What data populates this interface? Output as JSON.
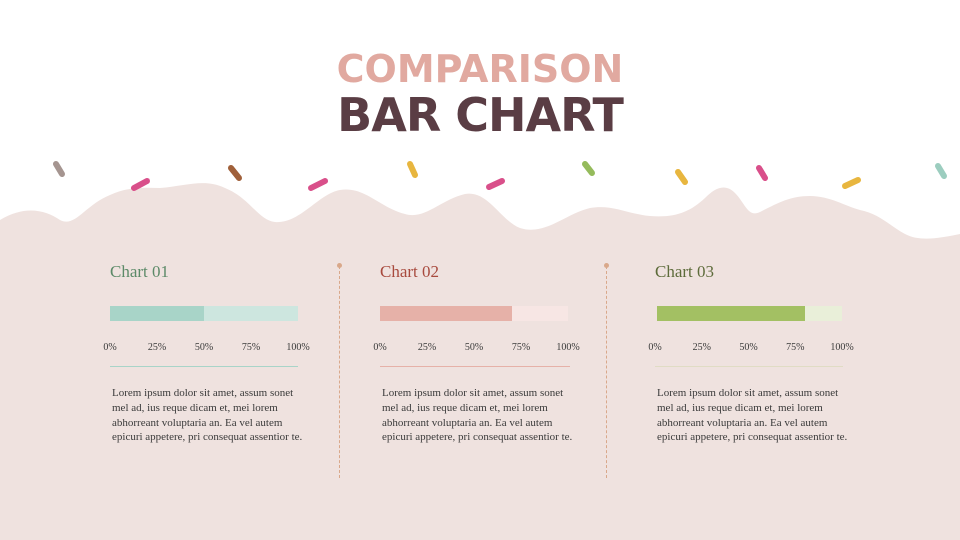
{
  "title": {
    "line1": "COMPARISON",
    "line2": "BAR CHART",
    "line1_color": "#e1a9a0",
    "line2_color": "#5a3d44"
  },
  "chart_data": [
    {
      "type": "bar",
      "title": "Chart 01",
      "value": 50,
      "xlim": [
        0,
        100
      ],
      "ticks": [
        "0%",
        "25%",
        "50%",
        "75%",
        "100%"
      ],
      "title_color": "#5c8a68",
      "fill_color": "#a8d4c8",
      "track_color": "#cde6df",
      "body": "Lorem ipsum dolor sit amet, assum sonet mel ad, ius reque dicam et, mei lorem abhorreant voluptaria an. Ea vel autem epicuri appetere, pri consequat assentior te."
    },
    {
      "type": "bar",
      "title": "Chart 02",
      "value": 70,
      "xlim": [
        0,
        100
      ],
      "ticks": [
        "0%",
        "25%",
        "50%",
        "75%",
        "100%"
      ],
      "title_color": "#a84a3e",
      "fill_color": "#e6b1a8",
      "track_color": "#f7e6e4",
      "body": "Lorem ipsum dolor sit amet, assum sonet mel ad, ius reque dicam et, mei lorem abhorreant voluptaria an. Ea vel autem epicuri appetere, pri consequat assentior te."
    },
    {
      "type": "bar",
      "title": "Chart 03",
      "value": 80,
      "xlim": [
        0,
        100
      ],
      "ticks": [
        "0%",
        "25%",
        "50%",
        "75%",
        "100%"
      ],
      "title_color": "#5d6b3a",
      "fill_color": "#a3c063",
      "track_color": "#e9efd9",
      "body": "Lorem ipsum dolor sit amet, assum sonet mel ad, ius reque dicam et, mei lorem abhorreant voluptaria an. Ea vel autem epicuri appetere, pri consequat assentior te."
    }
  ],
  "colors": {
    "background_bottom": "#efe2df",
    "background_top": "#ffffff",
    "divider": "#d9a88a"
  }
}
